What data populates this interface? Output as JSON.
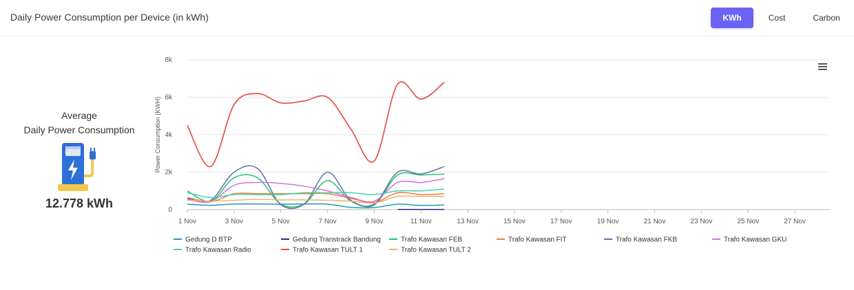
{
  "header": {
    "title": "Daily Power Consumption per Device (in kWh)",
    "tabs": [
      {
        "label": "KWh",
        "active": true
      },
      {
        "label": "Cost",
        "active": false
      },
      {
        "label": "Carbon",
        "active": false
      }
    ]
  },
  "summary": {
    "label_line1": "Average",
    "label_line2": "Daily Power Consumption",
    "value": "12.778 kWh",
    "icon": "ev-charger-icon"
  },
  "colors": {
    "accent": "#6b63f6"
  },
  "chart_data": {
    "type": "line",
    "title": "",
    "xlabel": "",
    "ylabel": "Power Consumption (KWH)",
    "ylim": [
      0,
      8000
    ],
    "yticks": [
      0,
      2000,
      4000,
      6000,
      8000
    ],
    "ytick_labels": [
      "0",
      "2k",
      "4k",
      "6k",
      "8k"
    ],
    "x": [
      1,
      2,
      3,
      4,
      5,
      6,
      7,
      8,
      9,
      10,
      11,
      12
    ],
    "xlim": [
      1,
      28.5
    ],
    "xtick_values": [
      1,
      3,
      5,
      7,
      9,
      11,
      13,
      15,
      17,
      19,
      21,
      23,
      25,
      27
    ],
    "xtick_labels": [
      "1 Nov",
      "3 Nov",
      "5 Nov",
      "7 Nov",
      "9 Nov",
      "11 Nov",
      "13 Nov",
      "15 Nov",
      "17 Nov",
      "19 Nov",
      "21 Nov",
      "23 Nov",
      "25 Nov",
      "27 Nov"
    ],
    "grid": true,
    "legend_position": "bottom",
    "series": [
      {
        "name": "Gedung D BTP",
        "color": "#1f9bb4",
        "values": [
          290,
          230,
          300,
          300,
          290,
          300,
          290,
          120,
          110,
          290,
          220,
          250
        ]
      },
      {
        "name": "Gedung Transtrack Bandung",
        "color": "#2b2d7c",
        "values": [
          null,
          null,
          null,
          null,
          null,
          null,
          null,
          null,
          null,
          10,
          10,
          10
        ]
      },
      {
        "name": "Trafo Kawasan FEB",
        "color": "#22c26a",
        "values": [
          1000,
          450,
          1700,
          1700,
          300,
          300,
          1550,
          450,
          250,
          1850,
          1850,
          1900
        ]
      },
      {
        "name": "Trafo Kawasan FIT",
        "color": "#ef7a3e",
        "values": [
          650,
          420,
          850,
          850,
          850,
          850,
          850,
          600,
          380,
          900,
          800,
          850
        ]
      },
      {
        "name": "Trafo Kawasan FKB",
        "color": "#5d71a8",
        "values": [
          600,
          500,
          2000,
          2200,
          270,
          300,
          2000,
          500,
          300,
          2000,
          1900,
          2300
        ]
      },
      {
        "name": "Trafo Kawasan GKU",
        "color": "#d46ee4",
        "values": [
          550,
          420,
          1300,
          1450,
          1400,
          1250,
          1000,
          650,
          450,
          1450,
          1450,
          1650
        ]
      },
      {
        "name": "Trafo Kawasan Radio",
        "color": "#3fd7ad",
        "values": [
          900,
          650,
          800,
          800,
          800,
          900,
          900,
          900,
          800,
          1000,
          1000,
          1100
        ]
      },
      {
        "name": "Trafo Kawasan TULT 1",
        "color": "#e8463c",
        "values": [
          4500,
          2300,
          5600,
          6200,
          5700,
          5800,
          6000,
          4300,
          2600,
          6700,
          5900,
          6800
        ]
      },
      {
        "name": "Trafo Kawasan TULT 2",
        "color": "#f2b26a",
        "values": [
          500,
          450,
          500,
          550,
          520,
          520,
          500,
          450,
          350,
          700,
          700,
          700
        ]
      }
    ]
  }
}
